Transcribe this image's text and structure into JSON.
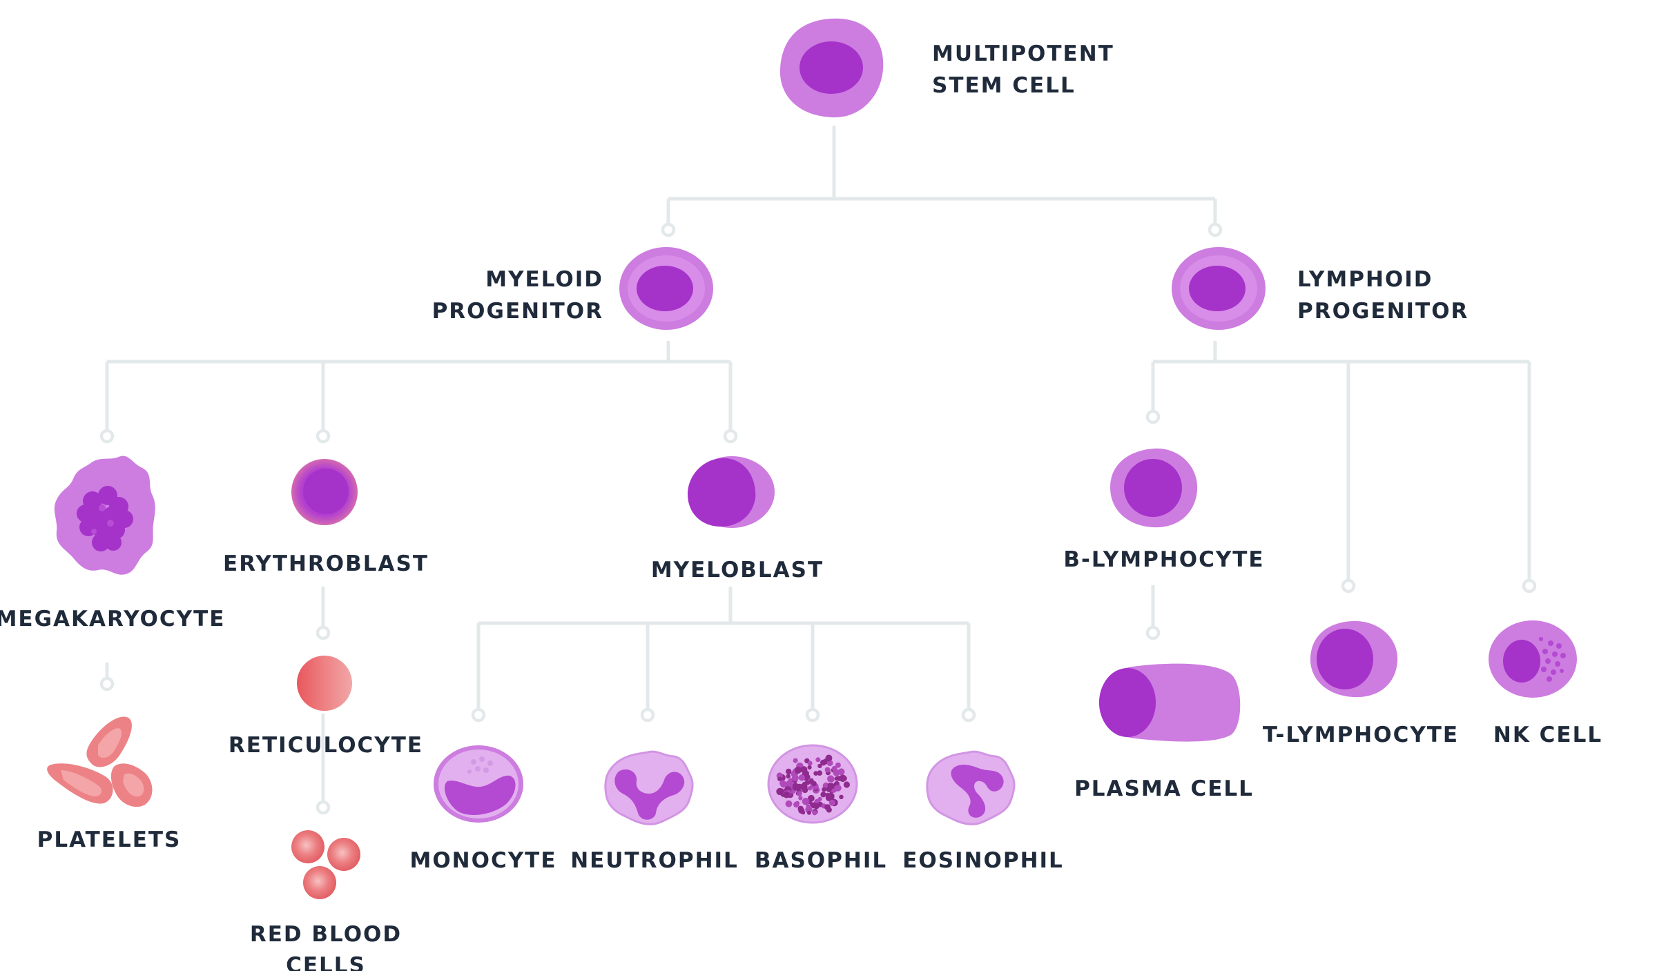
{
  "colors": {
    "connector": "#e3e9ea",
    "label": "#1f2a3a",
    "cell_outer": "#cd7ce0",
    "cell_nucleus": "#a532c9",
    "granulocyte": "#e2b0ee",
    "red_cell": "#e86a6e"
  },
  "cells": {
    "stem": {
      "label_lines": [
        "MULTIPOTENT",
        "STEM CELL"
      ],
      "icon": "stem-cell-icon"
    },
    "myeloid": {
      "label_lines": [
        "MYELOID",
        "PROGENITOR"
      ],
      "icon": "myeloid-progenitor-icon"
    },
    "lymphoid": {
      "label_lines": [
        "LYMPHOID",
        "PROGENITOR"
      ],
      "icon": "lymphoid-progenitor-icon"
    },
    "megakaryocyte": {
      "label": "MEGAKARYOCYTE",
      "icon": "megakaryocyte-icon"
    },
    "platelets": {
      "label": "PLATELETS",
      "icon": "platelets-icon"
    },
    "erythroblast": {
      "label": "ERYTHROBLAST",
      "icon": "erythroblast-icon"
    },
    "reticulocyte": {
      "label": "RETICULOCYTE",
      "icon": "reticulocyte-icon"
    },
    "rbc": {
      "label_lines": [
        "RED BLOOD",
        "CELLS"
      ],
      "icon": "red-blood-cells-icon"
    },
    "myeloblast": {
      "label": "MYELOBLAST",
      "icon": "myeloblast-icon"
    },
    "monocyte": {
      "label": "MONOCYTE",
      "icon": "monocyte-icon"
    },
    "neutrophil": {
      "label": "NEUTROPHIL",
      "icon": "neutrophil-icon"
    },
    "basophil": {
      "label": "BASOPHIL",
      "icon": "basophil-icon"
    },
    "eosinophil": {
      "label": "EOSINOPHIL",
      "icon": "eosinophil-icon"
    },
    "b_lymphocyte": {
      "label": "B-LYMPHOCYTE",
      "icon": "b-lymphocyte-icon"
    },
    "plasma": {
      "label": "PLASMA CELL",
      "icon": "plasma-cell-icon"
    },
    "t_lymphocyte": {
      "label": "T-LYMPHOCYTE",
      "icon": "t-lymphocyte-icon"
    },
    "nk": {
      "label": "NK CELL",
      "icon": "nk-cell-icon"
    }
  }
}
